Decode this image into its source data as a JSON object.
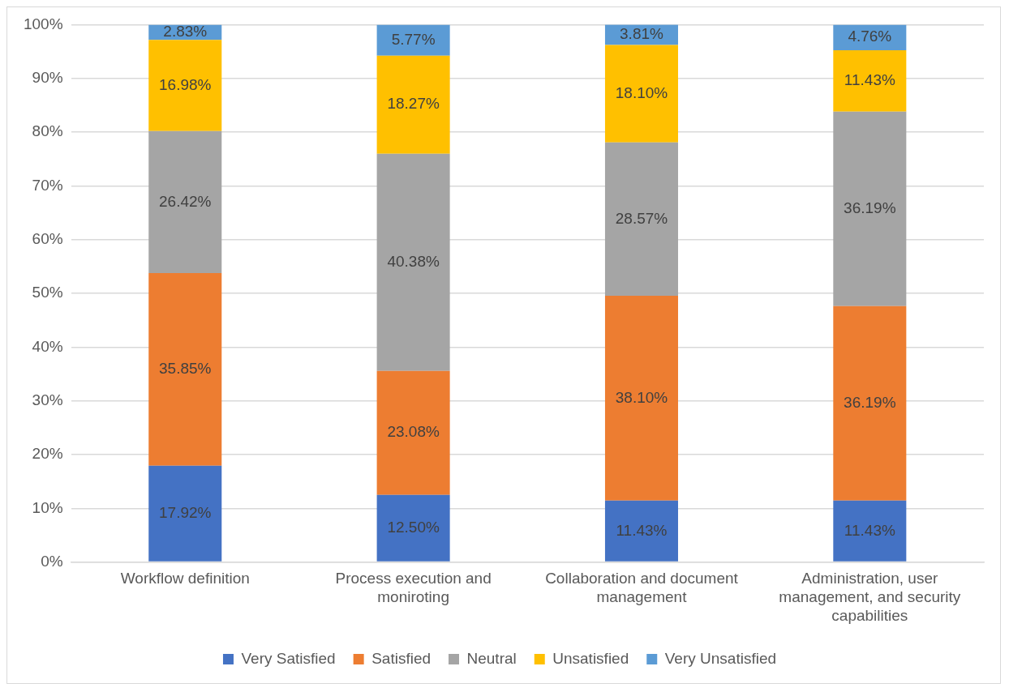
{
  "chart_data": {
    "type": "bar",
    "stacked": true,
    "categories": [
      "Workflow definition",
      "Process execution and moniroting",
      "Collaboration and document management",
      "Administration, user management, and security capabilities"
    ],
    "series": [
      {
        "name": "Very Satisfied",
        "color": "#4472c4",
        "values": [
          17.92,
          12.5,
          11.43,
          11.43
        ],
        "value_labels": [
          "17.92%",
          "12.50%",
          "11.43%",
          "11.43%"
        ]
      },
      {
        "name": "Satisfied",
        "color": "#ed7d31",
        "values": [
          35.85,
          23.08,
          38.1,
          36.19
        ],
        "value_labels": [
          "35.85%",
          "23.08%",
          "38.10%",
          "36.19%"
        ]
      },
      {
        "name": "Neutral",
        "color": "#a5a5a5",
        "values": [
          26.42,
          40.38,
          28.57,
          36.19
        ],
        "value_labels": [
          "26.42%",
          "40.38%",
          "28.57%",
          "36.19%"
        ]
      },
      {
        "name": "Unsatisfied",
        "color": "#ffc000",
        "values": [
          16.98,
          18.27,
          18.1,
          11.43
        ],
        "value_labels": [
          "16.98%",
          "18.27%",
          "18.10%",
          "11.43%"
        ]
      },
      {
        "name": "Very Unsatisfied",
        "color": "#5b9bd5",
        "values": [
          2.83,
          5.77,
          3.81,
          4.76
        ],
        "value_labels": [
          "2.83%",
          "5.77%",
          "3.81%",
          "4.76%"
        ]
      }
    ],
    "ylim": [
      0,
      100
    ],
    "yticks": [
      {
        "value": 0,
        "label": "0%"
      },
      {
        "value": 10,
        "label": "10%"
      },
      {
        "value": 20,
        "label": "20%"
      },
      {
        "value": 30,
        "label": "30%"
      },
      {
        "value": 40,
        "label": "40%"
      },
      {
        "value": 50,
        "label": "50%"
      },
      {
        "value": 60,
        "label": "60%"
      },
      {
        "value": 70,
        "label": "70%"
      },
      {
        "value": 80,
        "label": "80%"
      },
      {
        "value": 90,
        "label": "90%"
      },
      {
        "value": 100,
        "label": "100%"
      }
    ],
    "grid": "y",
    "legend": "bottom"
  }
}
